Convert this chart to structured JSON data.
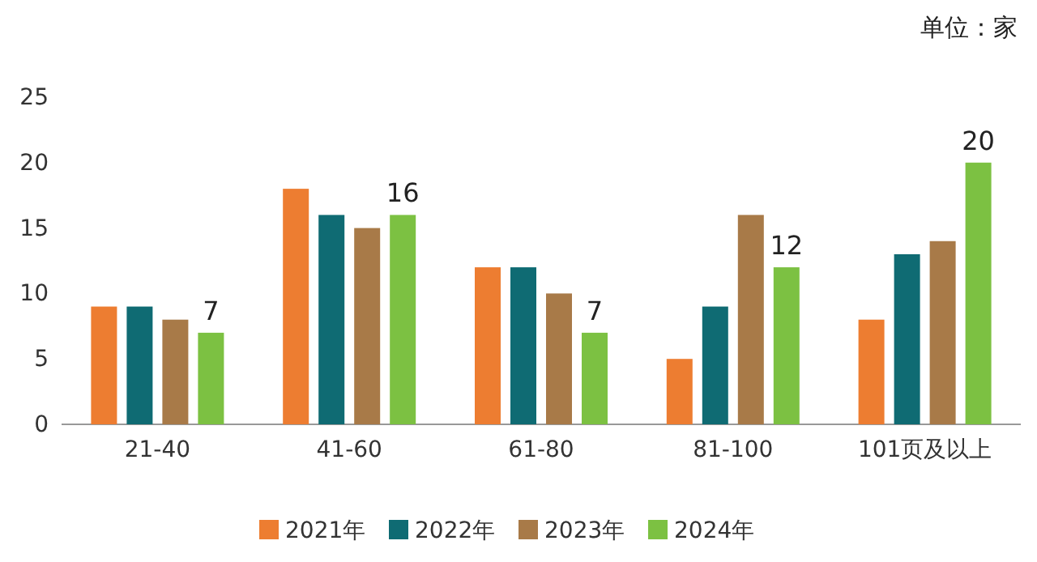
{
  "chart_data": {
    "type": "bar",
    "categories": [
      "21-40",
      "41-60",
      "61-80",
      "81-100",
      "101页及以上"
    ],
    "series": [
      {
        "name": "2021年",
        "color": "#ed7d31",
        "values": [
          9,
          18,
          12,
          5,
          8
        ]
      },
      {
        "name": "2022年",
        "color": "#0f6b73",
        "values": [
          9,
          16,
          12,
          9,
          13
        ]
      },
      {
        "name": "2023年",
        "color": "#a87a48",
        "values": [
          8,
          15,
          10,
          16,
          14
        ]
      },
      {
        "name": "2024年",
        "color": "#7cc142",
        "values": [
          7,
          16,
          7,
          12,
          20
        ],
        "value_labels": [
          "7",
          "16",
          "7",
          "12",
          "20"
        ]
      }
    ],
    "ylim": [
      0,
      25
    ],
    "yticks": [
      0,
      5,
      10,
      15,
      20,
      25
    ],
    "grid": false,
    "legend": "bottom",
    "annotations": [
      "单位：家"
    ]
  }
}
